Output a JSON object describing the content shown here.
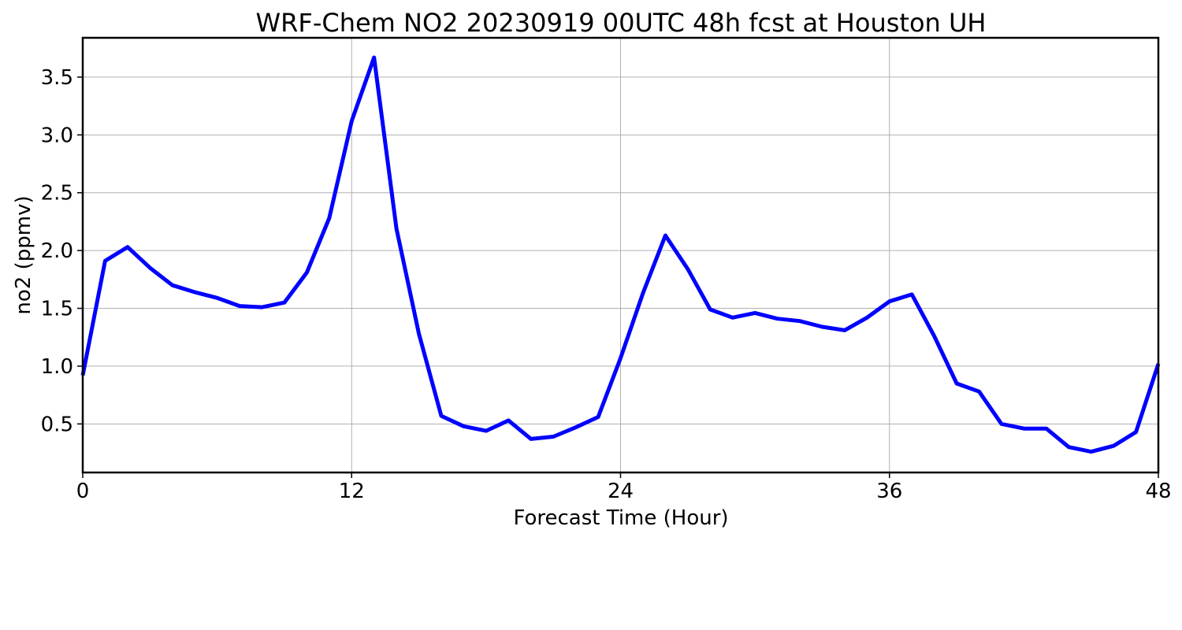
{
  "chart_data": {
    "type": "line",
    "title": "WRF-Chem NO2  20230919 00UTC 48h fcst at Houston UH",
    "xlabel": "Forecast Time (Hour)",
    "ylabel": "no2  (ppmv)",
    "xlim": [
      0,
      48
    ],
    "ylim": [
      0.08,
      3.84
    ],
    "xticks": [
      0,
      12,
      24,
      36,
      48
    ],
    "xtick_labels": [
      "0",
      "12",
      "24",
      "36",
      "48"
    ],
    "yticks": [
      0.5,
      1.0,
      1.5,
      2.0,
      2.5,
      3.0,
      3.5
    ],
    "ytick_labels": [
      "0.5",
      "1.0",
      "1.5",
      "2.0",
      "2.5",
      "3.0",
      "3.5"
    ],
    "grid": true,
    "series": [
      {
        "color": "#0000ff",
        "x": [
          0,
          1,
          2,
          3,
          4,
          5,
          6,
          7,
          8,
          9,
          10,
          11,
          12,
          13,
          14,
          15,
          16,
          17,
          18,
          19,
          20,
          21,
          22,
          23,
          24,
          25,
          26,
          27,
          28,
          29,
          30,
          31,
          32,
          33,
          34,
          35,
          36,
          37,
          38,
          39,
          40,
          41,
          42,
          43,
          44,
          45,
          46,
          47,
          48
        ],
        "values": [
          0.92,
          1.91,
          2.03,
          1.85,
          1.7,
          1.64,
          1.59,
          1.52,
          1.51,
          1.55,
          1.81,
          2.28,
          3.12,
          3.67,
          2.19,
          1.28,
          0.57,
          0.48,
          0.44,
          0.53,
          0.37,
          0.39,
          0.47,
          0.56,
          1.07,
          1.63,
          2.13,
          1.84,
          1.49,
          1.42,
          1.46,
          1.41,
          1.39,
          1.34,
          1.31,
          1.42,
          1.56,
          1.62,
          1.26,
          0.85,
          0.78,
          0.5,
          0.46,
          0.46,
          0.3,
          0.26,
          0.31,
          0.43,
          1.02
        ]
      }
    ]
  }
}
